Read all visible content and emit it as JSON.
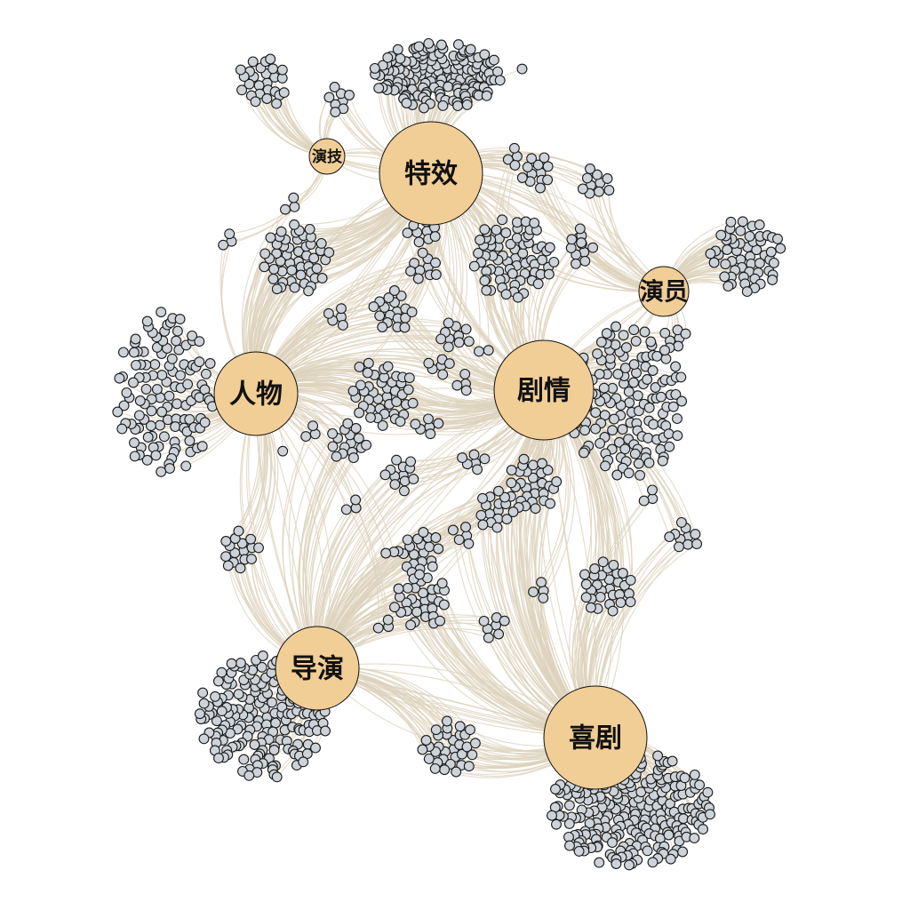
{
  "diagram": {
    "type": "network",
    "hub_color": "#f1ce96",
    "leaf_color": "#cdd3d8",
    "edge_color": "#ddd2bd",
    "hubs": [
      {
        "id": "texiao",
        "label": "特效"
      },
      {
        "id": "yanji",
        "label": "演技"
      },
      {
        "id": "yanyuan",
        "label": "演员"
      },
      {
        "id": "renwu",
        "label": "人物"
      },
      {
        "id": "juqing",
        "label": "剧情"
      },
      {
        "id": "daoyan",
        "label": "导演"
      },
      {
        "id": "xiju",
        "label": "喜剧"
      }
    ]
  }
}
